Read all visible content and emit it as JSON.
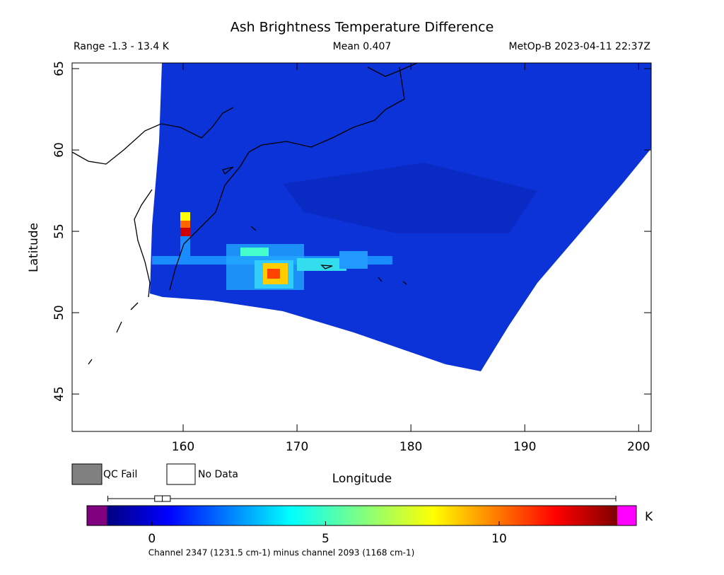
{
  "title": "Ash Brightness Temperature Difference",
  "info": {
    "range": "Range -1.3 - 13.4 K",
    "mean": "Mean 0.407",
    "satellite": "MetOp-B 2023-04-11 22:37Z"
  },
  "map": {
    "x_label": "Longitude",
    "y_label": "Latitude",
    "xlim": [
      150.25,
      201.1
    ],
    "ylim": [
      42.7,
      65.35
    ],
    "xticks": [
      160,
      170,
      180,
      190,
      200
    ],
    "yticks": [
      45,
      50,
      55,
      60,
      65
    ]
  },
  "legend": [
    "QC Fail",
    "No Data"
  ],
  "colorbar": {
    "lim": [
      -1.87,
      13.95
    ],
    "range": [
      -1.3,
      13.4
    ],
    "ticks": [
      0,
      5,
      10
    ],
    "unit": "K",
    "boxplot": [
      -1.27,
      0.08,
      0.3,
      0.53,
      13.36
    ],
    "caption": "Channel 2347 (1231.5 cm-1) minus channel 2093 (1168 cm-1)"
  }
}
